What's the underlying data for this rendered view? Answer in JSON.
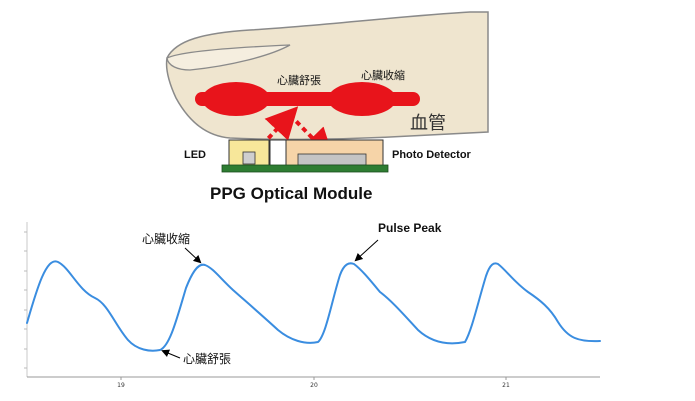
{
  "module": {
    "label_diastole": "心臟舒張",
    "label_systole": "心臟收縮",
    "label_vessel": "血管",
    "label_led": "LED",
    "label_detector": "Photo Detector",
    "caption": "PPG Optical Module"
  },
  "waveform": {
    "annot_systole": "心臟收縮",
    "annot_peak": "Pulse Peak",
    "annot_diastole": "心臟舒張",
    "tick_labels": [
      "19",
      "20",
      "21"
    ]
  },
  "colors": {
    "finger_fill": "#efe5cf",
    "vessel": "#e8141b",
    "arrow": "#e8141b",
    "board": "#2e7d32",
    "module_yellow": "#f7e79a",
    "module_peach": "#f6d4a8",
    "detector_gray": "#c4c4c4",
    "wave": "#3a8de0"
  }
}
